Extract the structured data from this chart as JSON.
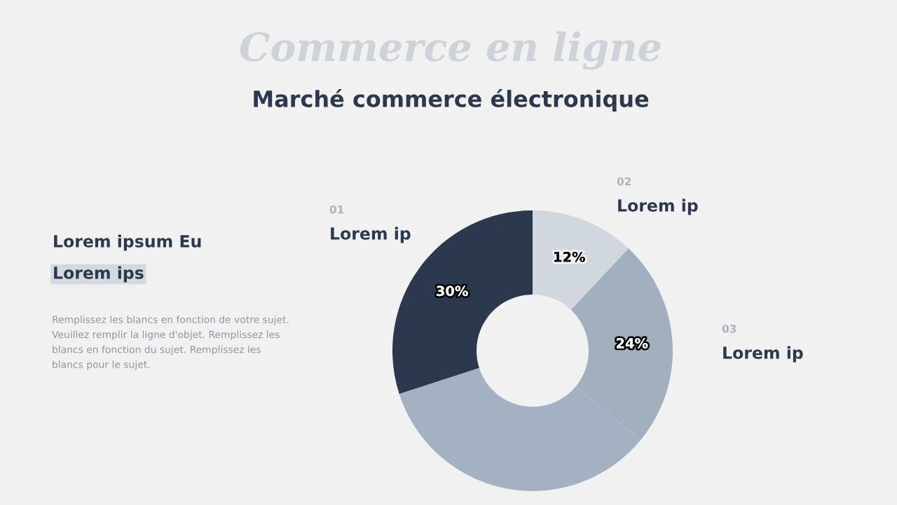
{
  "chart_data": {
    "type": "donut",
    "title": "Marché commerce électronique",
    "categories": [
      "Lorem ip",
      "Lorem ip",
      "Lorem ip",
      null
    ],
    "values": [
      30,
      12,
      24,
      34
    ],
    "colors": [
      "#2b384e",
      "#d0d7de",
      "#a1afbf",
      "#a3b1c2"
    ],
    "value_labels": [
      "30%",
      "12%",
      "24%",
      null
    ],
    "annotations": [
      "Commerce en ligne",
      "Lorem ipsum Eu",
      "Lorem ips",
      "Remplissez les blancs en fonction de votre sujet. Veuillez remplir la ligne d'objet. Remplissez les blancs en fonction du sujet. Remplissez les blancs pour le sujet.",
      "01",
      "02",
      "03"
    ],
    "legend": false
  }
}
